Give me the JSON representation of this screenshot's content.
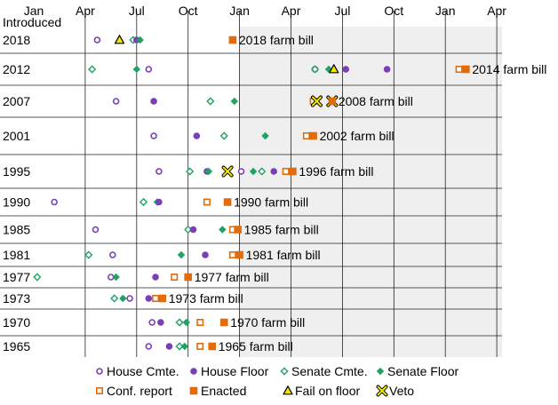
{
  "chart_data": {
    "type": "scatter",
    "title": "",
    "y_axis_title": "Introduced",
    "x_tick_labels": [
      "Jan",
      "Apr",
      "Jul",
      "Oct",
      "Jan",
      "Apr",
      "Jul",
      "Oct",
      "Jan",
      "Apr"
    ],
    "x_units": "months since January of the introduction year",
    "x_range": [
      0,
      27.3
    ],
    "shaded_region": [
      12,
      27.3
    ],
    "grid": true,
    "legend_position": "bottom",
    "legend": [
      {
        "key": "house_cmte",
        "label": "House Cmte."
      },
      {
        "key": "house_floor",
        "label": "House Floor"
      },
      {
        "key": "senate_cmte",
        "label": "Senate Cmte."
      },
      {
        "key": "senate_floor",
        "label": "Senate Floor"
      },
      {
        "key": "conf_report",
        "label": "Conf. report"
      },
      {
        "key": "enacted",
        "label": "Enacted"
      },
      {
        "key": "fail",
        "label": "Fail on floor"
      },
      {
        "key": "veto",
        "label": "Veto"
      }
    ],
    "colors": {
      "purple": "#7b3fb5",
      "green": "#1fa363",
      "orange": "#e36c0a",
      "yellow": "#f2e600"
    },
    "rows": [
      {
        "year": "2018",
        "bill": "2018 farm bill",
        "events": [
          {
            "type": "house_cmte",
            "x": 3.7
          },
          {
            "type": "fail",
            "x": 5.0
          },
          {
            "type": "senate_cmte",
            "x": 5.8
          },
          {
            "type": "house_floor",
            "x": 6.0
          },
          {
            "type": "senate_floor",
            "x": 6.2
          },
          {
            "type": "enacted",
            "x": 11.6
          }
        ]
      },
      {
        "year": "2012",
        "bill": "2014 farm bill",
        "events": [
          {
            "type": "senate_cmte",
            "x": 3.4
          },
          {
            "type": "senate_floor",
            "x": 6.0
          },
          {
            "type": "house_cmte",
            "x": 6.7
          },
          {
            "type": "house_cmte",
            "x": 16.4
          },
          {
            "type": "senate_cmte",
            "x": 16.4
          },
          {
            "type": "senate_floor",
            "x": 17.2
          },
          {
            "type": "fail",
            "x": 17.5
          },
          {
            "type": "house_floor",
            "x": 18.2
          },
          {
            "type": "house_floor",
            "x": 20.6
          },
          {
            "type": "conf_report",
            "x": 24.8
          },
          {
            "type": "enacted",
            "x": 25.2
          }
        ]
      },
      {
        "year": "2007",
        "bill": "2008 farm bill",
        "events": [
          {
            "type": "house_cmte",
            "x": 4.8
          },
          {
            "type": "house_floor",
            "x": 7.0
          },
          {
            "type": "senate_cmte",
            "x": 10.3
          },
          {
            "type": "senate_floor",
            "x": 11.7
          },
          {
            "type": "conf_report",
            "x": 16.3
          },
          {
            "type": "veto",
            "x": 16.5
          },
          {
            "type": "veto",
            "x": 17.4
          },
          {
            "type": "enacted",
            "x": 17.4
          }
        ]
      },
      {
        "year": "2001",
        "bill": "2002 farm bill",
        "events": [
          {
            "type": "house_cmte",
            "x": 7.0
          },
          {
            "type": "house_floor",
            "x": 9.5
          },
          {
            "type": "senate_cmte",
            "x": 11.1
          },
          {
            "type": "senate_floor",
            "x": 13.5
          },
          {
            "type": "conf_report",
            "x": 15.9
          },
          {
            "type": "enacted",
            "x": 16.3
          }
        ]
      },
      {
        "year": "1995",
        "bill": "1996 farm bill",
        "events": [
          {
            "type": "house_cmte",
            "x": 7.3
          },
          {
            "type": "senate_cmte",
            "x": 9.1
          },
          {
            "type": "house_floor",
            "x": 10.1
          },
          {
            "type": "senate_floor",
            "x": 10.2
          },
          {
            "type": "veto",
            "x": 11.3
          },
          {
            "type": "house_cmte",
            "x": 12.1
          },
          {
            "type": "senate_floor",
            "x": 12.8
          },
          {
            "type": "senate_cmte",
            "x": 13.3
          },
          {
            "type": "house_floor",
            "x": 14.0
          },
          {
            "type": "conf_report",
            "x": 14.7
          },
          {
            "type": "enacted",
            "x": 15.1
          }
        ]
      },
      {
        "year": "1990",
        "bill": "1990 farm bill",
        "events": [
          {
            "type": "house_cmte",
            "x": 1.2
          },
          {
            "type": "senate_cmte",
            "x": 6.4
          },
          {
            "type": "senate_floor",
            "x": 7.2
          },
          {
            "type": "house_floor",
            "x": 7.3
          },
          {
            "type": "conf_report",
            "x": 10.1
          },
          {
            "type": "enacted",
            "x": 11.3
          }
        ]
      },
      {
        "year": "1985",
        "bill": "1985 farm bill",
        "events": [
          {
            "type": "house_cmte",
            "x": 3.6
          },
          {
            "type": "senate_cmte",
            "x": 9.0
          },
          {
            "type": "house_floor",
            "x": 9.3
          },
          {
            "type": "senate_floor",
            "x": 11.0
          },
          {
            "type": "conf_report",
            "x": 11.6
          },
          {
            "type": "enacted",
            "x": 11.9
          }
        ]
      },
      {
        "year": "1981",
        "bill": "1981 farm bill",
        "events": [
          {
            "type": "senate_cmte",
            "x": 3.2
          },
          {
            "type": "house_cmte",
            "x": 4.6
          },
          {
            "type": "senate_floor",
            "x": 8.6
          },
          {
            "type": "house_floor",
            "x": 10.0
          },
          {
            "type": "conf_report",
            "x": 11.6
          },
          {
            "type": "enacted",
            "x": 12.0
          }
        ]
      },
      {
        "year": "1977",
        "bill": "1977 farm bill",
        "events": [
          {
            "type": "senate_cmte",
            "x": 0.2
          },
          {
            "type": "house_cmte",
            "x": 4.5
          },
          {
            "type": "senate_floor",
            "x": 4.8
          },
          {
            "type": "house_floor",
            "x": 7.1
          },
          {
            "type": "conf_report",
            "x": 8.2
          },
          {
            "type": "enacted",
            "x": 9.0
          }
        ]
      },
      {
        "year": "1973",
        "bill": "1973 farm bill",
        "events": [
          {
            "type": "senate_cmte",
            "x": 4.7
          },
          {
            "type": "senate_floor",
            "x": 5.2
          },
          {
            "type": "house_cmte",
            "x": 5.6
          },
          {
            "type": "house_floor",
            "x": 6.7
          },
          {
            "type": "conf_report",
            "x": 7.1
          },
          {
            "type": "enacted",
            "x": 7.5
          }
        ]
      },
      {
        "year": "1970",
        "bill": "1970 farm bill",
        "events": [
          {
            "type": "house_cmte",
            "x": 6.9
          },
          {
            "type": "house_floor",
            "x": 7.4
          },
          {
            "type": "senate_cmte",
            "x": 8.5
          },
          {
            "type": "senate_floor",
            "x": 8.9
          },
          {
            "type": "conf_report",
            "x": 9.7
          },
          {
            "type": "enacted",
            "x": 11.1
          }
        ]
      },
      {
        "year": "1965",
        "bill": "1965 farm bill",
        "events": [
          {
            "type": "house_cmte",
            "x": 6.7
          },
          {
            "type": "house_floor",
            "x": 7.9
          },
          {
            "type": "senate_cmte",
            "x": 8.5
          },
          {
            "type": "senate_floor",
            "x": 8.8
          },
          {
            "type": "conf_report",
            "x": 9.7
          },
          {
            "type": "enacted",
            "x": 10.4
          }
        ]
      }
    ]
  }
}
